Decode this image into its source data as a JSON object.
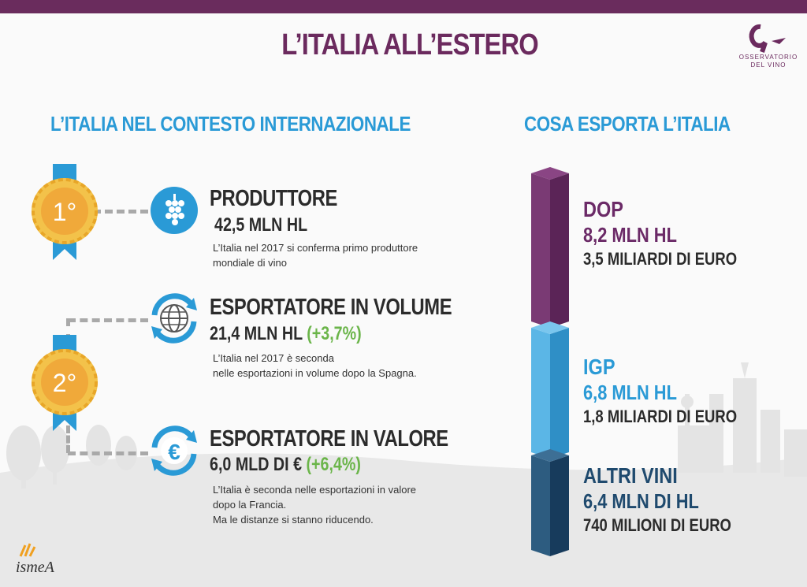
{
  "header": {
    "title": "L’ITALIA ALL’ESTERO"
  },
  "logo": {
    "line1": "OSSERVATORIO",
    "line2": "DEL VINO"
  },
  "left_section": {
    "title": "L’ITALIA NEL CONTESTO INTERNAZIONALE",
    "medals": [
      {
        "label": "1°"
      },
      {
        "label": "2°"
      }
    ],
    "items": [
      {
        "heading": "PRODUTTORE",
        "value": "42,5 MLN HL",
        "change": "",
        "desc": [
          "L’Italia nel 2017 si conferma primo produttore",
          "mondiale di vino"
        ],
        "icon": "grapes-icon"
      },
      {
        "heading": "ESPORTATORE IN VOLUME",
        "value": "21,4 MLN HL",
        "change": "(+3,7%)",
        "desc": [
          "L’Italia nel 2017 è seconda",
          "nelle esportazioni in volume dopo la Spagna."
        ],
        "icon": "globe-icon"
      },
      {
        "heading": "ESPORTATORE IN VALORE",
        "value": "6,0 MLD DI €",
        "change": "(+6,4%)",
        "desc": [
          "L’Italia è seconda nelle esportazioni in valore",
          "dopo la Francia.",
          "Ma le distanze si stanno riducendo."
        ],
        "icon": "euro-icon"
      }
    ]
  },
  "right_section": {
    "title": "COSA ESPORTA L’ITALIA",
    "segments": [
      {
        "name": "DOP",
        "volume": "8,2 MLN HL",
        "value": "3,5 MILIARDI DI EURO",
        "color": "#6b2a67"
      },
      {
        "name": "IGP",
        "volume": "6,8 MLN HL",
        "value": "1,8 MILIARDI DI EURO",
        "color": "#3aa6dc"
      },
      {
        "name": "ALTRI VINI",
        "volume": "6,4 MLN DI HL",
        "value": "740 MILIONI DI EURO",
        "color": "#1f4a6e"
      }
    ]
  },
  "footer": {
    "brand": "ismeA"
  },
  "colors": {
    "accent": "#6b2a5e",
    "blue": "#2a9ad6",
    "green": "#6bb54a",
    "gold": "#f0b030"
  }
}
